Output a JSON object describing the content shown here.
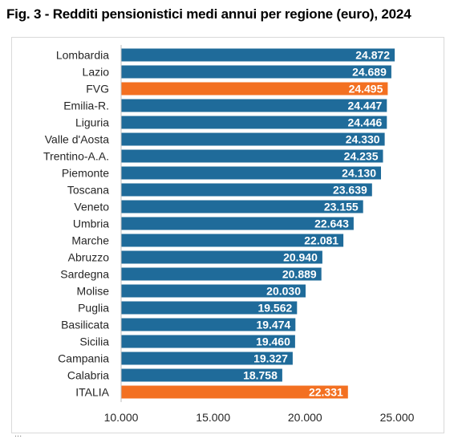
{
  "figure": {
    "title": "Fig. 3 - Redditi pensionistici medi annui per regione (euro), 2024"
  },
  "chart_data": {
    "type": "bar",
    "orientation": "horizontal",
    "title": "Fig. 3 - Redditi pensionistici medi annui per regione (euro), 2024",
    "xlabel": "",
    "ylabel": "",
    "xlim": [
      10000,
      25000
    ],
    "xticks": [
      10000,
      15000,
      20000,
      25000
    ],
    "xtick_labels": [
      "10.000",
      "15.000",
      "20.000",
      "25.000"
    ],
    "grid": false,
    "categories": [
      "Lombardia",
      "Lazio",
      "FVG",
      "Emilia-R.",
      "Liguria",
      "Valle d'Aosta",
      "Trentino-A.A.",
      "Piemonte",
      "Toscana",
      "Veneto",
      "Umbria",
      "Marche",
      "Abruzzo",
      "Sardegna",
      "Molise",
      "Puglia",
      "Basilicata",
      "Sicilia",
      "Campania",
      "Calabria",
      "ITALIA"
    ],
    "values": [
      24872,
      24689,
      24495,
      24447,
      24446,
      24330,
      24235,
      24130,
      23639,
      23155,
      22643,
      22081,
      20940,
      20889,
      20030,
      19562,
      19474,
      19460,
      19327,
      18758,
      22331
    ],
    "value_labels": [
      "24.872",
      "24.689",
      "24.495",
      "24.447",
      "24.446",
      "24.330",
      "24.235",
      "24.130",
      "23.639",
      "23.155",
      "22.643",
      "22.081",
      "20.940",
      "20.889",
      "20.030",
      "19.562",
      "19.474",
      "19.460",
      "19.327",
      "18.758",
      "22.331"
    ],
    "highlighted": [
      "FVG",
      "ITALIA"
    ],
    "colors": {
      "default": "#1f6b9a",
      "highlight": "#f37021"
    }
  },
  "footer": {
    "source_text": "..."
  }
}
